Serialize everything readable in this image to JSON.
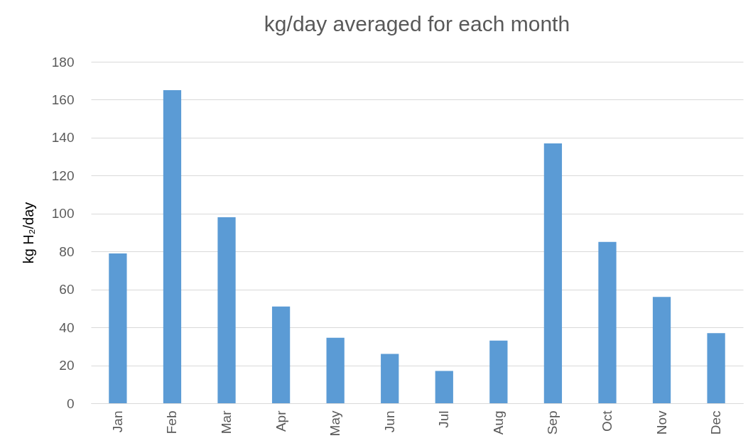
{
  "chart_data": {
    "type": "bar",
    "title": "kg/day averaged for each month",
    "ylabel": "kg H₂/day",
    "categories": [
      "Jan",
      "Feb",
      "Mar",
      "Apr",
      "May",
      "Jun",
      "Jul",
      "Aug",
      "Sep",
      "Oct",
      "Nov",
      "Dec"
    ],
    "values": [
      79,
      165,
      98,
      51,
      34.5,
      26,
      17,
      33,
      137,
      85,
      56,
      37
    ],
    "color": "#5b9bd5",
    "ylim": [
      0,
      180
    ],
    "yticks": [
      0,
      20,
      40,
      60,
      80,
      100,
      120,
      140,
      160,
      180
    ],
    "grid": "y"
  }
}
